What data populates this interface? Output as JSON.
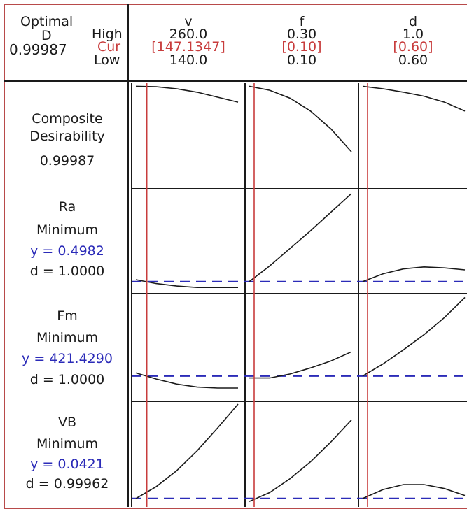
{
  "optimal": {
    "title": "Optimal",
    "d_label": "D",
    "d_value": "0.99987",
    "high_label": "High",
    "cur_label": "Cur",
    "low_label": "Low"
  },
  "factors": [
    {
      "name": "v",
      "high": "260.0",
      "cur": "[147.1347]",
      "low": "140.0"
    },
    {
      "name": "f",
      "high": "0.30",
      "cur": "[0.10]",
      "low": "0.10"
    },
    {
      "name": "d",
      "high": "1.0",
      "cur": "[0.60]",
      "low": "0.60"
    }
  ],
  "responses": [
    {
      "name": "Composite",
      "goal": "Desirability",
      "y": "",
      "d": "0.99987"
    },
    {
      "name": "Ra",
      "goal": "Minimum",
      "y": "y = 0.4982",
      "d": "d = 1.0000"
    },
    {
      "name": "Fm",
      "goal": "Minimum",
      "y": "y = 421.4290",
      "d": "d = 1.0000"
    },
    {
      "name": "VB",
      "goal": "Minimum",
      "y": "y = 0.0421",
      "d": "d = 0.99962"
    }
  ],
  "colors": {
    "border": "#b84a4a",
    "current_line": "#c83c3c",
    "reference_line": "#2b2bb8",
    "curve": "#1a1a1a",
    "grid": "#1a1a1a"
  },
  "chart_data": {
    "type": "line",
    "title": "",
    "grid": true,
    "factors": [
      {
        "name": "v",
        "low": 140.0,
        "high": 260.0,
        "current": 147.1347
      },
      {
        "name": "f",
        "low": 0.1,
        "high": 0.3,
        "current": 0.1
      },
      {
        "name": "d",
        "low": 0.6,
        "high": 1.0,
        "current": 0.6
      }
    ],
    "rows": [
      {
        "response": "Composite Desirability",
        "optimum": 0.99987,
        "reference": null,
        "curves": [
          [
            [
              0.0,
              0.99
            ],
            [
              0.2,
              0.985
            ],
            [
              0.4,
              0.965
            ],
            [
              0.6,
              0.93
            ],
            [
              0.8,
              0.88
            ],
            [
              1.0,
              0.83
            ]
          ],
          [
            [
              0.0,
              0.99
            ],
            [
              0.2,
              0.95
            ],
            [
              0.4,
              0.87
            ],
            [
              0.6,
              0.74
            ],
            [
              0.8,
              0.56
            ],
            [
              1.0,
              0.33
            ]
          ],
          [
            [
              0.0,
              0.99
            ],
            [
              0.2,
              0.965
            ],
            [
              0.4,
              0.93
            ],
            [
              0.6,
              0.89
            ],
            [
              0.8,
              0.83
            ],
            [
              1.0,
              0.74
            ]
          ]
        ]
      },
      {
        "response": "Ra",
        "optimum": 0.4982,
        "reference": 0.08,
        "curves": [
          [
            [
              0.0,
              0.1
            ],
            [
              0.2,
              0.06
            ],
            [
              0.4,
              0.035
            ],
            [
              0.6,
              0.02
            ],
            [
              0.8,
              0.02
            ],
            [
              1.0,
              0.02
            ]
          ],
          [
            [
              0.0,
              0.08
            ],
            [
              0.2,
              0.24
            ],
            [
              0.4,
              0.42
            ],
            [
              0.6,
              0.6
            ],
            [
              0.8,
              0.79
            ],
            [
              1.0,
              0.98
            ]
          ],
          [
            [
              0.0,
              0.08
            ],
            [
              0.2,
              0.16
            ],
            [
              0.4,
              0.21
            ],
            [
              0.6,
              0.23
            ],
            [
              0.8,
              0.22
            ],
            [
              1.0,
              0.2
            ]
          ]
        ]
      },
      {
        "response": "Fm",
        "optimum": 421.429,
        "reference": 0.21,
        "curves": [
          [
            [
              0.0,
              0.24
            ],
            [
              0.2,
              0.18
            ],
            [
              0.4,
              0.13
            ],
            [
              0.6,
              0.1
            ],
            [
              0.8,
              0.09
            ],
            [
              1.0,
              0.09
            ]
          ],
          [
            [
              0.0,
              0.19
            ],
            [
              0.2,
              0.19
            ],
            [
              0.4,
              0.23
            ],
            [
              0.6,
              0.29
            ],
            [
              0.8,
              0.36
            ],
            [
              1.0,
              0.45
            ]
          ],
          [
            [
              0.0,
              0.21
            ],
            [
              0.2,
              0.33
            ],
            [
              0.4,
              0.47
            ],
            [
              0.6,
              0.62
            ],
            [
              0.8,
              0.79
            ],
            [
              1.0,
              0.99
            ]
          ]
        ]
      },
      {
        "response": "VB",
        "optimum": 0.0421,
        "reference": 0.05,
        "curves": [
          [
            [
              0.0,
              0.05
            ],
            [
              0.2,
              0.17
            ],
            [
              0.4,
              0.33
            ],
            [
              0.6,
              0.53
            ],
            [
              0.8,
              0.76
            ],
            [
              1.0,
              1.0
            ]
          ],
          [
            [
              0.0,
              0.02
            ],
            [
              0.2,
              0.11
            ],
            [
              0.4,
              0.25
            ],
            [
              0.6,
              0.42
            ],
            [
              0.8,
              0.62
            ],
            [
              1.0,
              0.84
            ]
          ],
          [
            [
              0.0,
              0.05
            ],
            [
              0.2,
              0.14
            ],
            [
              0.4,
              0.19
            ],
            [
              0.6,
              0.19
            ],
            [
              0.8,
              0.15
            ],
            [
              1.0,
              0.08
            ]
          ]
        ]
      }
    ]
  }
}
